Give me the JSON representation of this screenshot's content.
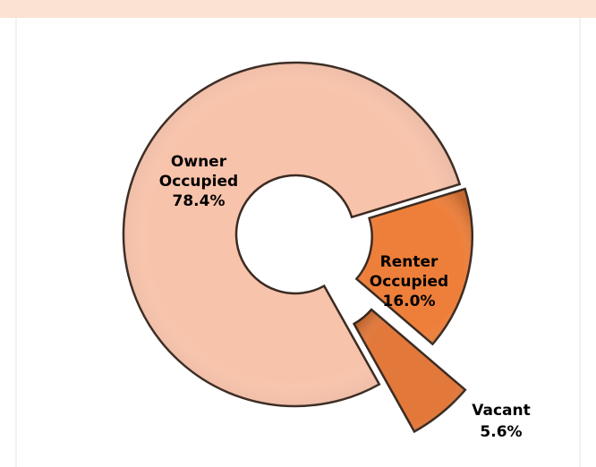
{
  "chart_data": {
    "type": "donut",
    "categories": [
      "Owner Occupied",
      "Renter Occupied",
      "Vacant"
    ],
    "values": [
      78.4,
      16.0,
      5.6
    ],
    "value_labels": [
      "78.4%",
      "16.0%",
      "5.6%"
    ],
    "colors": [
      "#f8c3ab",
      "#ee7f3a",
      "#e2783a"
    ]
  }
}
